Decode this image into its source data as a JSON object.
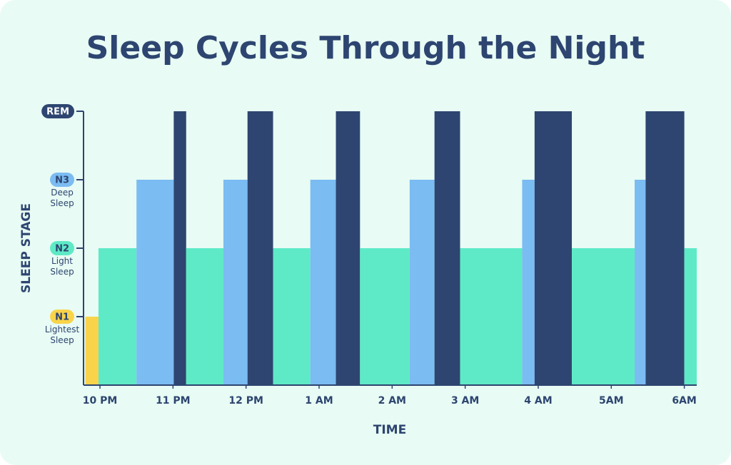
{
  "chart_data": {
    "type": "hypnogram",
    "title": "Sleep Cycles Through the Night",
    "x_label": "TIME",
    "y_label": "SLEEP STAGE",
    "x": [
      -0.2,
      -0.02,
      0.5,
      1.01,
      1.18,
      1.69,
      2.02,
      2.37,
      2.88,
      3.23,
      3.56,
      4.24,
      4.58,
      4.93,
      5.78,
      5.95,
      6.46,
      7.32,
      7.47,
      8.0
    ],
    "x_end": [
      -0.02,
      0.5,
      1.01,
      1.18,
      1.69,
      2.02,
      2.37,
      2.88,
      3.23,
      3.56,
      4.24,
      4.58,
      4.93,
      5.78,
      5.95,
      6.46,
      7.32,
      7.47,
      8.0,
      8.17
    ],
    "values": [
      1,
      2,
      3,
      4,
      2,
      3,
      4,
      2,
      3,
      4,
      2,
      3,
      4,
      2,
      3,
      4,
      2,
      3,
      4,
      2
    ],
    "xlim": [
      -0.225,
      8.17
    ],
    "xticks": [
      {
        "value": 0,
        "label": "10 PM"
      },
      {
        "value": 1,
        "label": "11 PM"
      },
      {
        "value": 2,
        "label": "12 PM"
      },
      {
        "value": 3,
        "label": "1 AM"
      },
      {
        "value": 4,
        "label": "2 AM"
      },
      {
        "value": 5,
        "label": "3 AM"
      },
      {
        "value": 6,
        "label": "4 AM"
      },
      {
        "value": 7,
        "label": "5AM"
      },
      {
        "value": 8,
        "label": "6AM"
      }
    ],
    "ylim": [
      0,
      4
    ],
    "yticks": [
      {
        "value": 1,
        "label": "N1"
      },
      {
        "value": 2,
        "label": "N2"
      },
      {
        "value": 3,
        "label": "N3"
      },
      {
        "value": 4,
        "label": "REM"
      }
    ],
    "ytick_notes": [
      "Lightest Sleep",
      "Light Sleep",
      "Deep Sleep",
      null
    ],
    "stage_colors": [
      "#f9d44a",
      "#5eeac6",
      "#7bbcf2",
      "#2d4570"
    ]
  }
}
